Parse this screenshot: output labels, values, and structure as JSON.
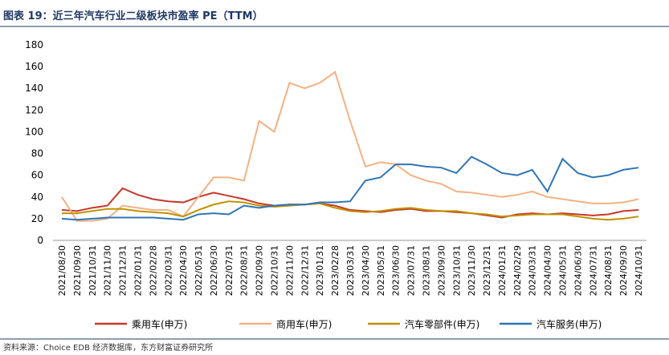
{
  "chart_data": {
    "type": "line",
    "title": "图表 19：近三年汽车行业二级板块市盈率 PE（TTM）",
    "source": "资料来源：Choice EDB 经济数据库，东方财富证券研究所",
    "categories": [
      "2021/08/30",
      "2021/09/30",
      "2021/10/31",
      "2021/11/30",
      "2021/12/31",
      "2022/01/31",
      "2022/02/28",
      "2022/03/31",
      "2022/04/30",
      "2022/05/31",
      "2022/06/30",
      "2022/07/31",
      "2022/08/31",
      "2022/09/30",
      "2022/10/31",
      "2022/11/30",
      "2022/12/31",
      "2023/01/31",
      "2023/02/28",
      "2023/03/31",
      "2023/04/30",
      "2023/05/31",
      "2023/06/30",
      "2023/07/31",
      "2023/08/31",
      "2023/09/30",
      "2023/10/31",
      "2023/11/30",
      "2023/12/31",
      "2024/01/31",
      "2024/02/29",
      "2024/03/31",
      "2024/04/30",
      "2024/05/31",
      "2024/06/30",
      "2024/07/31",
      "2024/08/31",
      "2024/09/30",
      "2024/10/31"
    ],
    "series": [
      {
        "name": "乘用车(申万)",
        "color": "#c5392b",
        "values": [
          28,
          27,
          30,
          32,
          48,
          42,
          38,
          36,
          35,
          40,
          44,
          41,
          38,
          34,
          32,
          33,
          33,
          34,
          32,
          28,
          27,
          26,
          28,
          29,
          27,
          27,
          26,
          25,
          23,
          21,
          24,
          25,
          24,
          25,
          24,
          23,
          24,
          27,
          28
        ]
      },
      {
        "name": "商用车(申万)",
        "color": "#f4b183",
        "values": [
          40,
          18,
          18,
          20,
          32,
          30,
          28,
          28,
          22,
          40,
          58,
          58,
          55,
          110,
          100,
          145,
          140,
          145,
          155,
          110,
          68,
          72,
          70,
          60,
          55,
          52,
          45,
          44,
          42,
          40,
          42,
          45,
          40,
          38,
          36,
          34,
          34,
          35,
          38
        ]
      },
      {
        "name": "汽车零部件(申万)",
        "color": "#bf9000",
        "values": [
          25,
          25,
          27,
          29,
          29,
          27,
          26,
          25,
          22,
          28,
          33,
          36,
          35,
          32,
          31,
          32,
          33,
          34,
          30,
          27,
          26,
          27,
          29,
          30,
          28,
          27,
          27,
          25,
          24,
          22,
          23,
          24,
          24,
          24,
          22,
          20,
          19,
          20,
          22
        ]
      },
      {
        "name": "汽车服务(申万)",
        "color": "#2e75b6",
        "values": [
          20,
          19,
          20,
          21,
          21,
          21,
          21,
          20,
          19,
          24,
          25,
          24,
          32,
          30,
          32,
          33,
          33,
          35,
          35,
          36,
          55,
          58,
          70,
          70,
          68,
          67,
          62,
          77,
          70,
          62,
          60,
          65,
          45,
          75,
          62,
          58,
          60,
          65,
          67
        ]
      }
    ],
    "ylim": [
      0,
      180
    ],
    "yticks": [
      0,
      20,
      40,
      60,
      80,
      100,
      120,
      140,
      160,
      180
    ]
  }
}
